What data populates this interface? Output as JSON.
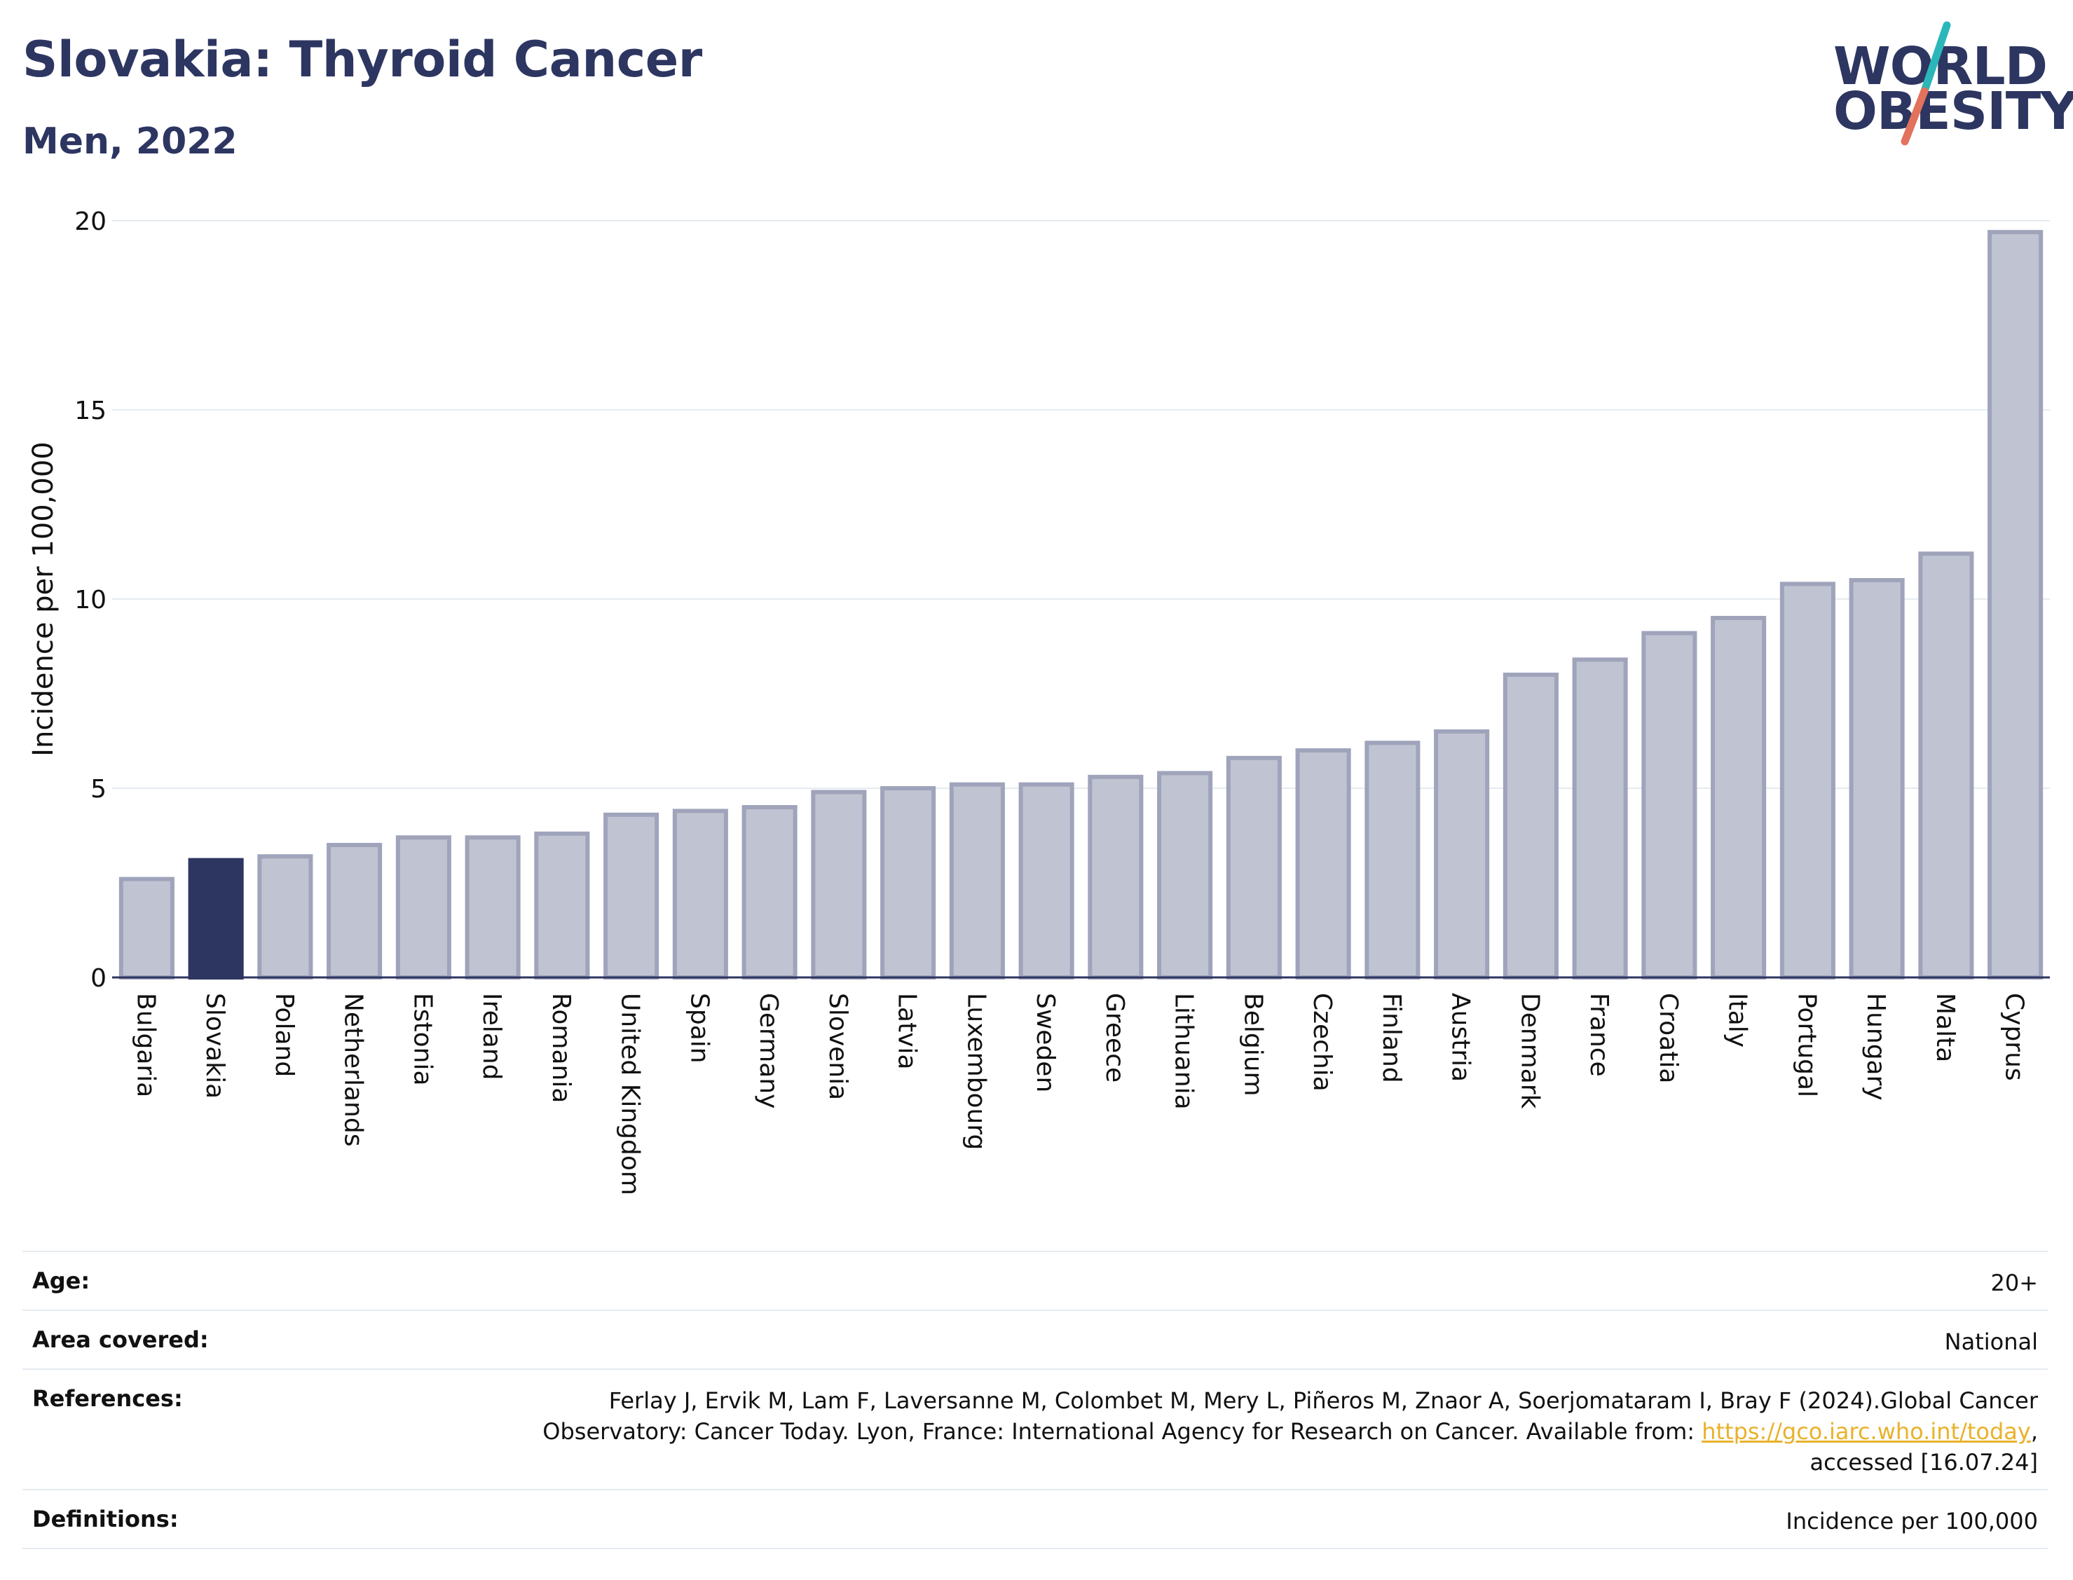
{
  "header": {
    "title": "Slovakia: Thyroid Cancer",
    "subtitle": "Men, 2022"
  },
  "logo": {
    "line1": "WORLD",
    "line2": "OBESITY",
    "slash_colors": [
      "#2bb7b9",
      "#e2725b"
    ]
  },
  "colors": {
    "bar_default_fill": "#c0c3d1",
    "bar_default_stroke": "#9fa4bb",
    "bar_highlight": "#2d3561",
    "axis_text": "#111111",
    "grid": "#e6ebf0"
  },
  "chart_data": {
    "type": "bar",
    "title": "Slovakia: Thyroid Cancer",
    "subtitle": "Men, 2022",
    "xlabel": "",
    "ylabel": "Incidence per 100,000",
    "ylim": [
      0,
      20
    ],
    "yticks": [
      0,
      5,
      10,
      15,
      20
    ],
    "grid": true,
    "legend": "none",
    "highlight": "Slovakia",
    "categories": [
      "Bulgaria",
      "Slovakia",
      "Poland",
      "Netherlands",
      "Estonia",
      "Ireland",
      "Romania",
      "United Kingdom",
      "Spain",
      "Germany",
      "Slovenia",
      "Latvia",
      "Luxembourg",
      "Sweden",
      "Greece",
      "Lithuania",
      "Belgium",
      "Czechia",
      "Finland",
      "Austria",
      "Denmark",
      "France",
      "Croatia",
      "Italy",
      "Portugal",
      "Hungary",
      "Malta",
      "Cyprus"
    ],
    "values": [
      2.6,
      3.1,
      3.2,
      3.5,
      3.7,
      3.7,
      3.8,
      4.3,
      4.4,
      4.5,
      4.9,
      5.0,
      5.1,
      5.1,
      5.3,
      5.4,
      5.8,
      6.0,
      6.2,
      6.5,
      8.0,
      8.4,
      9.1,
      9.5,
      10.4,
      10.5,
      11.2,
      19.7
    ]
  },
  "meta": {
    "age_label": "Age:",
    "age_value": "20+",
    "area_label": "Area covered:",
    "area_value": "National",
    "references_label": "References:",
    "references_line1": "Ferlay J, Ervik M, Lam F, Laversanne M, Colombet M, Mery L, Piñeros M, Znaor A, Soerjomataram I, Bray F (2024).Global Cancer",
    "references_line2_prefix": "Observatory: Cancer Today. Lyon, France: International Agency for Research on Cancer. Available from: ",
    "references_link": "https://gco.iarc.who.int/today",
    "references_line2_suffix": ",",
    "references_line3": "accessed [16.07.24]",
    "definitions_label": "Definitions:",
    "definitions_value": "Incidence per 100,000"
  }
}
